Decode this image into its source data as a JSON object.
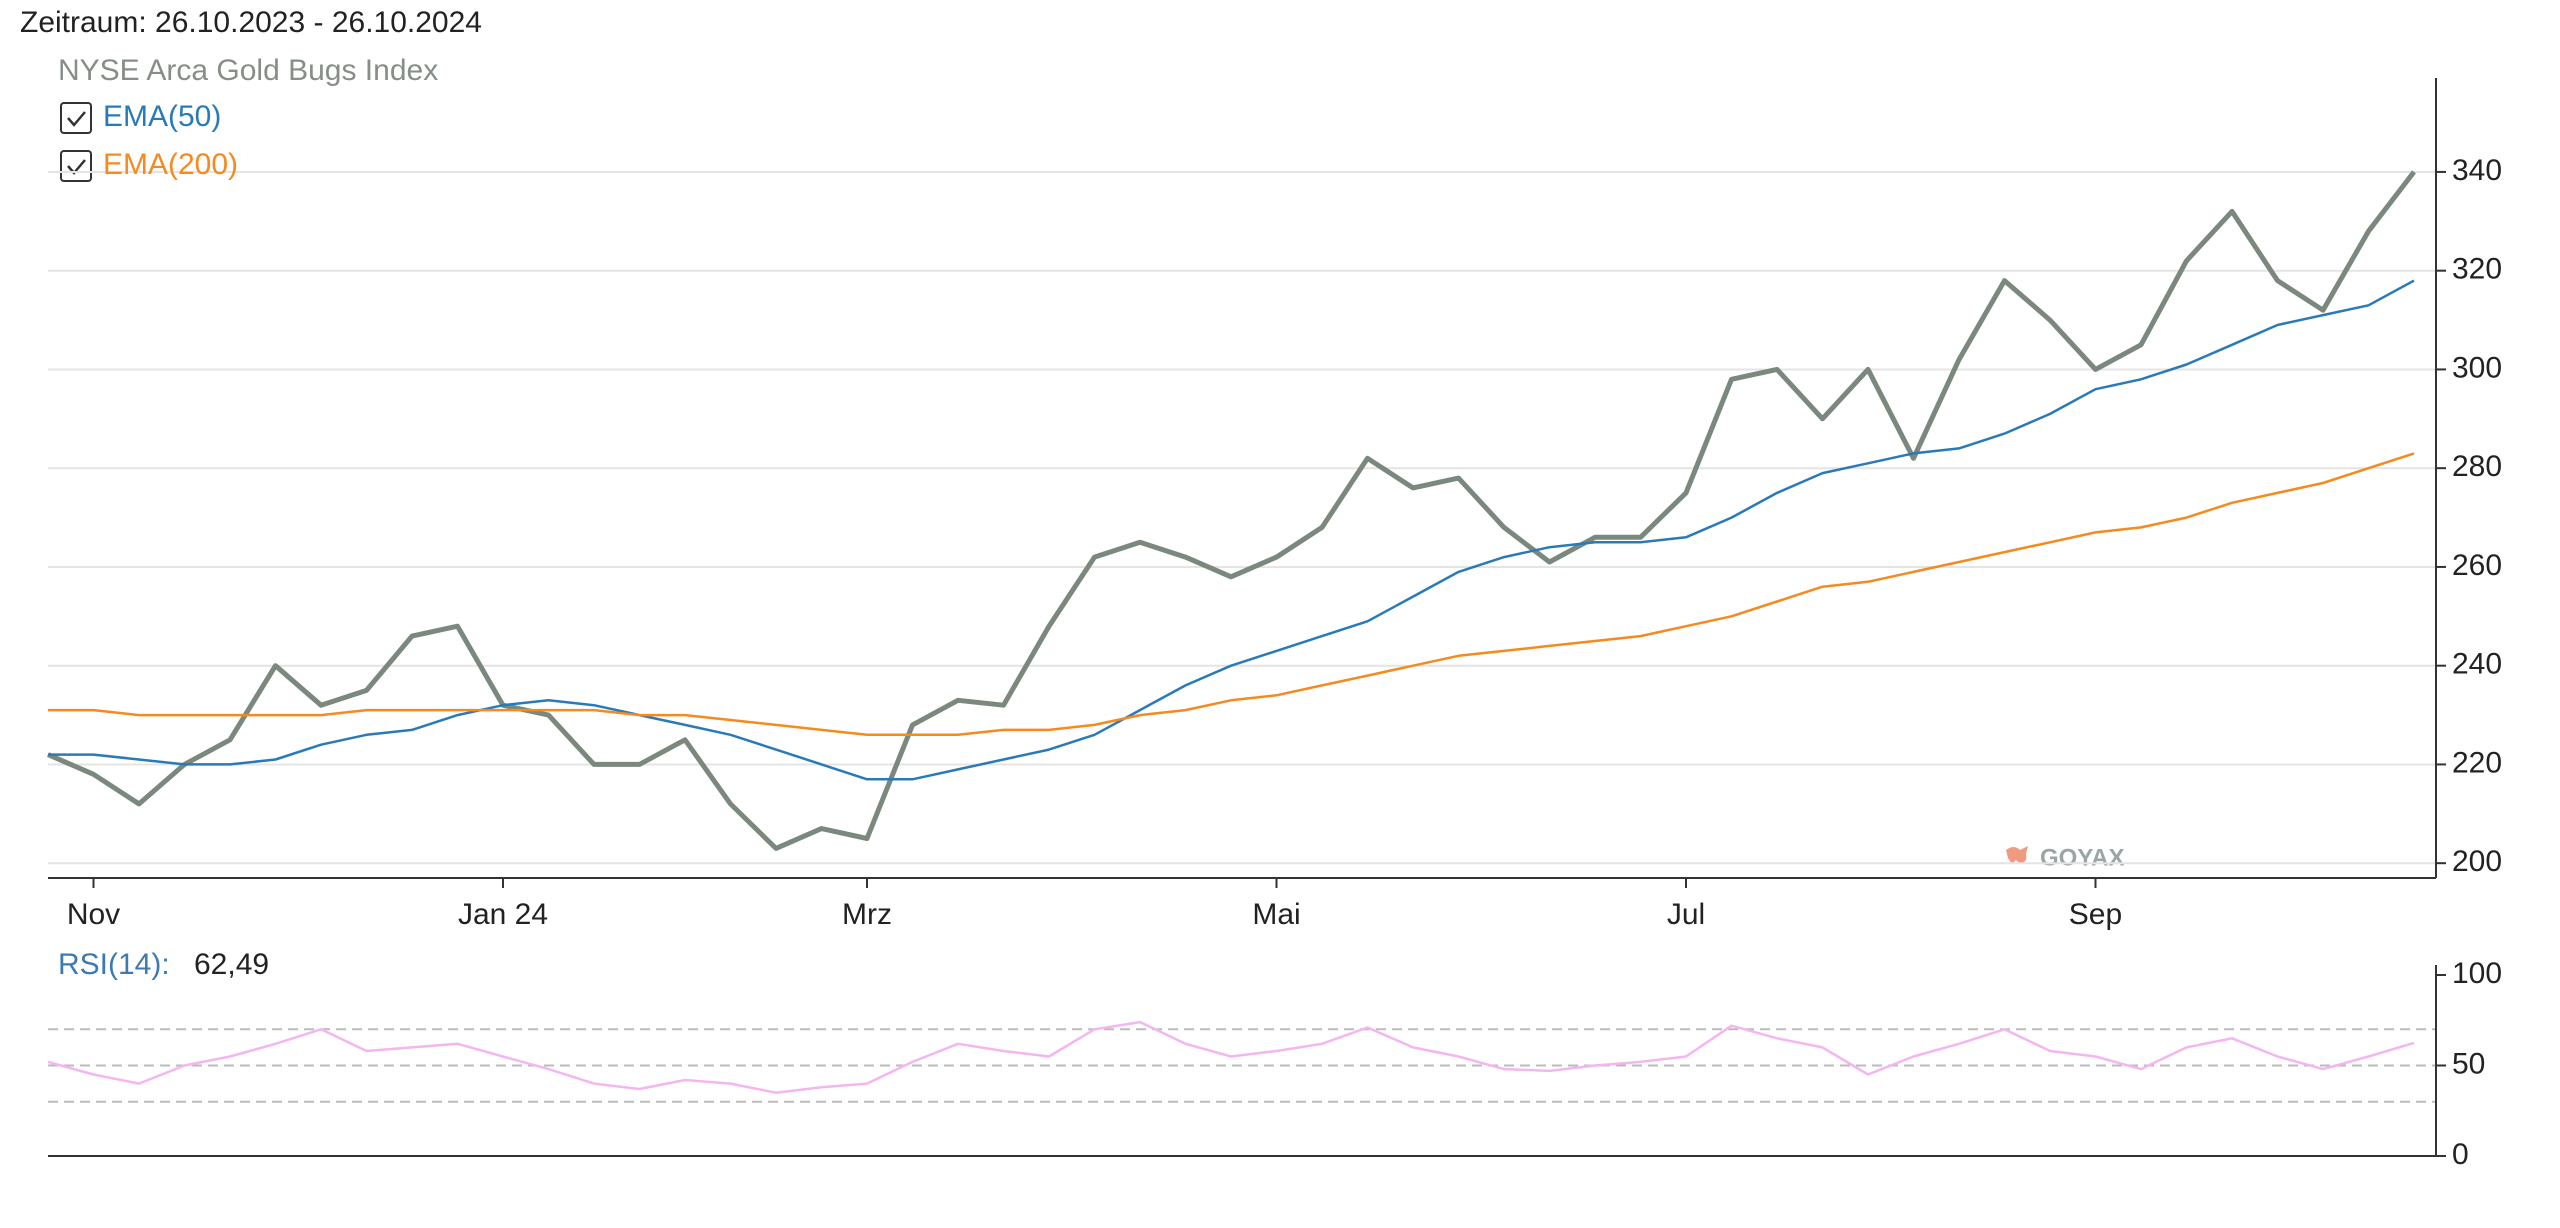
{
  "period": "Zeitraum: 26.10.2023 - 26.10.2024",
  "watermark": "GOYAX",
  "chart_data": [
    {
      "type": "line",
      "title": "NYSE Arca Gold Bugs Index",
      "categories": [
        null,
        "Nov",
        null,
        null,
        null,
        null,
        null,
        null,
        null,
        null,
        "Jan 24",
        null,
        null,
        null,
        null,
        null,
        null,
        null,
        "Mrz",
        null,
        null,
        null,
        null,
        null,
        null,
        null,
        null,
        "Mai",
        null,
        null,
        null,
        null,
        null,
        null,
        null,
        null,
        "Jul",
        null,
        null,
        null,
        null,
        null,
        null,
        null,
        null,
        "Sep",
        null,
        null,
        null,
        null,
        null,
        null,
        null
      ],
      "series": [
        {
          "color": "#7b887d",
          "values": [
            222,
            218,
            212,
            220,
            225,
            240,
            232,
            235,
            246,
            248,
            232,
            230,
            220,
            220,
            225,
            212,
            203,
            207,
            205,
            228,
            233,
            232,
            248,
            262,
            265,
            262,
            258,
            262,
            268,
            282,
            276,
            278,
            268,
            261,
            266,
            266,
            275,
            298,
            300,
            290,
            300,
            282,
            302,
            318,
            310,
            300,
            305,
            322,
            332,
            318,
            312,
            328,
            340
          ]
        },
        {
          "name": "EMA(50)",
          "color": "#2a7ab8",
          "values": [
            222,
            222,
            221,
            220,
            220,
            221,
            224,
            226,
            227,
            230,
            232,
            233,
            232,
            230,
            228,
            226,
            223,
            220,
            217,
            217,
            219,
            221,
            223,
            226,
            231,
            236,
            240,
            243,
            246,
            249,
            254,
            259,
            262,
            264,
            265,
            265,
            266,
            270,
            275,
            279,
            281,
            283,
            284,
            287,
            291,
            296,
            298,
            301,
            305,
            309,
            311,
            313,
            318
          ]
        },
        {
          "name": "EMA(200)",
          "color": "#f58a1f",
          "values": [
            231,
            231,
            230,
            230,
            230,
            230,
            230,
            231,
            231,
            231,
            231,
            231,
            231,
            230,
            230,
            229,
            228,
            227,
            226,
            226,
            226,
            227,
            227,
            228,
            230,
            231,
            233,
            234,
            236,
            238,
            240,
            242,
            243,
            244,
            245,
            246,
            248,
            250,
            253,
            256,
            257,
            259,
            261,
            263,
            265,
            267,
            268,
            270,
            273,
            275,
            277,
            280,
            283
          ]
        }
      ],
      "ylim": [
        197,
        357
      ],
      "yticks": [
        200,
        220,
        240,
        260,
        280,
        300,
        320,
        340
      ],
      "grid": true
    },
    {
      "type": "line",
      "title": "RSI(14):",
      "value_label": "62,49",
      "series": [
        {
          "color": "#f4b6f0",
          "values": [
            52,
            45,
            40,
            50,
            55,
            62,
            70,
            58,
            60,
            62,
            55,
            48,
            40,
            37,
            42,
            40,
            35,
            38,
            40,
            52,
            62,
            58,
            55,
            70,
            74,
            62,
            55,
            58,
            62,
            71,
            60,
            55,
            48,
            47,
            50,
            52,
            55,
            72,
            65,
            60,
            45,
            55,
            62,
            70,
            58,
            55,
            48,
            60,
            65,
            55,
            48,
            55,
            62.49
          ]
        }
      ],
      "ylim": [
        0,
        100
      ],
      "yticks": [
        0,
        50,
        100
      ],
      "reference_lines": [
        30,
        50,
        70
      ]
    }
  ]
}
